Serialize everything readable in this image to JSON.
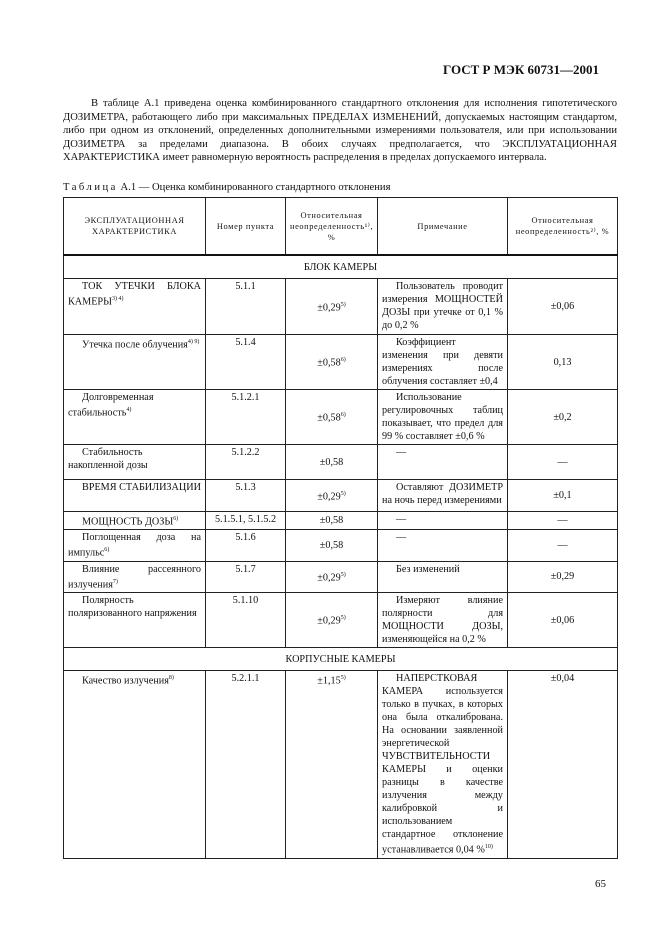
{
  "header": "ГОСТ Р МЭК 60731—2001",
  "intro": "В таблице А.1 приведена оценка комбинированного стандартного отклонения для исполнения гипотетического ДОЗИМЕТРА, работающего либо при максимальных ПРЕДЕЛАХ ИЗМЕНЕНИЙ, допускаемых настоящим стандартом, либо при одном из отклонений, определенных дополнительными измерениями пользователя, или при использовании ДОЗИМЕТРА за пределами диапазона. В обоих случаях предполагается, что ЭКСПЛУАТАЦИОННАЯ ХАРАКТЕРИСТИКА имеет равномерную вероятность распределения в пределах допускаемого интервала.",
  "caption": {
    "prefix": "Таблица",
    "rest": " А.1 — Оценка комбинированного стандартного отклонения"
  },
  "table": {
    "headers": [
      "ЭКСПЛУАТАЦИОННАЯ ХАРАКТЕРИСТИКА",
      "Номер пункта",
      "Относительная неопределенность¹⁾, %",
      "Примечание",
      "Относительная неопределенность²⁾, %"
    ],
    "section1": "БЛОК КАМЕРЫ",
    "rows1": [
      {
        "name": "ТОК УТЕЧКИ БЛОКА КАМЕРЫ",
        "sup": "3) 4)",
        "clause": "5.1.1",
        "u1": "±0,29",
        "u1sup": "5)",
        "note": "Пользователь проводит измерения МОЩНОСТЕЙ ДОЗЫ при утечке от 0,1 % до 0,2 %",
        "u2": "±0,06"
      },
      {
        "name": "Утечка после облучения",
        "sup": "4) 9)",
        "clause": "5.1.4",
        "u1": "±0,58",
        "u1sup": "6)",
        "note": "Коэффициент изменения при девяти измерениях после облучения составляет ±0,4",
        "u2": "0,13"
      },
      {
        "name": "Долговременная стабильность",
        "sup": "4)",
        "clause": "5.1.2.1",
        "u1": "±0,58",
        "u1sup": "6)",
        "note": "Использование регулировочных таблиц показывает, что предел для 99 % составляет ±0,6 %",
        "u2": "±0,2"
      },
      {
        "name": "Стабильность накопленной дозы",
        "sup": "",
        "clause": "5.1.2.2",
        "u1": "±0,58",
        "u1sup": "",
        "note": "—",
        "u2": "—"
      },
      {
        "name": "ВРЕМЯ СТАБИЛИЗАЦИИ",
        "sup": "",
        "clause": "5.1.3",
        "u1": "±0,29",
        "u1sup": "5)",
        "note": "Оставляют ДОЗИМЕТР на ночь перед измерениями",
        "u2": "±0,1"
      },
      {
        "name": "МОЩНОСТЬ ДОЗЫ",
        "sup": "6)",
        "clause": "5.1.5.1, 5.1.5.2",
        "u1": "±0,58",
        "u1sup": "",
        "note": "—",
        "u2": "—"
      },
      {
        "name": "Поглощенная доза на импульс",
        "sup": "6)",
        "clause": "5.1.6",
        "u1": "±0,58",
        "u1sup": "",
        "note": "—",
        "u2": "—"
      },
      {
        "name": "Влияние рассеянного излучения",
        "sup": "7)",
        "clause": "5.1.7",
        "u1": "±0,29",
        "u1sup": "5)",
        "note": "Без изменений",
        "u2": "±0,29"
      },
      {
        "name": "Полярность поляризованного напряжения",
        "sup": "",
        "clause": "5.1.10",
        "u1": "±0,29",
        "u1sup": "5)",
        "note": "Измеряют влияние полярности для МОЩНОСТИ ДОЗЫ, изменяющейся на 0,2 %",
        "u2": "±0,06"
      }
    ],
    "section2": "КОРПУСНЫЕ КАМЕРЫ",
    "rows2": [
      {
        "name": "Качество излучения",
        "sup": "8)",
        "clause": "5.2.1.1",
        "u1": "±1,15",
        "u1sup": "5)",
        "note": "НАПЕРСТКОВАЯ КАМЕРА используется только в пучках, в которых она была откалибрована. На основании заявленной энергетической ЧУВСТВИТЕЛЬНОСТИ КАМЕРЫ и оценки разницы в качестве излучения между калибровкой и использованием стандартное отклонение устанавливается 0,04 %",
        "notesup": "10)",
        "u2": "±0,04"
      }
    ]
  },
  "page_number": "65"
}
